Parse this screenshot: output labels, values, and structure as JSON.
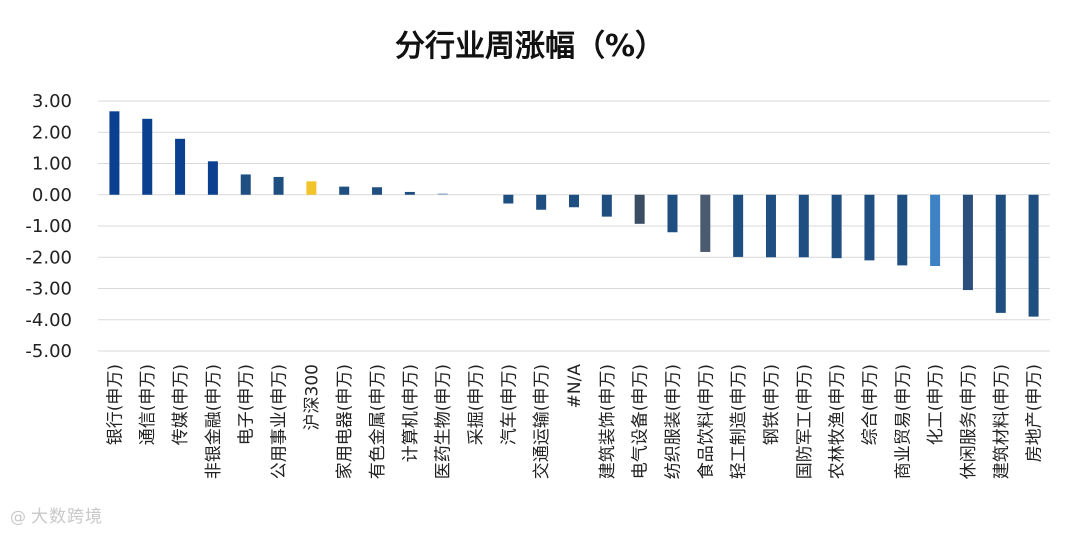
{
  "chart_data": {
    "type": "bar",
    "title": "分行业周涨幅（%）",
    "xlabel": "",
    "ylabel": "",
    "ylim": [
      -5,
      3
    ],
    "yticks": [
      "3.00",
      "2.00",
      "1.00",
      "0.00",
      "-1.00",
      "-2.00",
      "-3.00",
      "-4.00",
      "-5.00"
    ],
    "ytick_values": [
      3,
      2,
      1,
      0,
      -1,
      -2,
      -3,
      -4,
      -5
    ],
    "grid": true,
    "categories": [
      "银行(申万)",
      "通信(申万)",
      "传媒(申万)",
      "非银金融(申万)",
      "电子(申万)",
      "公用事业(申万)",
      "沪深300",
      "家用电器(申万)",
      "有色金属(申万)",
      "计算机(申万)",
      "医药生物(申万)",
      "采掘(申万)",
      "汽车(申万)",
      "交通运输(申万)",
      "#N/A",
      "建筑装饰(申万)",
      "电气设备(申万)",
      "纺织服装(申万)",
      "食品饮料(申万)",
      "轻工制造(申万)",
      "钢铁(申万)",
      "国防军工(申万)",
      "农林牧渔(申万)",
      "综合(申万)",
      "商业贸易(申万)",
      "化工(申万)",
      "休闲服务(申万)",
      "建筑材料(申万)",
      "房地产(申万)"
    ],
    "values": [
      2.67,
      2.43,
      1.79,
      1.07,
      0.65,
      0.57,
      0.43,
      0.26,
      0.24,
      0.09,
      0.04,
      0.0,
      -0.28,
      -0.48,
      -0.4,
      -0.7,
      -0.93,
      -1.2,
      -1.83,
      -1.99,
      -2.0,
      -2.0,
      -2.03,
      -2.1,
      -2.26,
      -2.28,
      -3.05,
      -3.78,
      -3.9
    ],
    "colors": [
      "#0b3f8f",
      "#0b3f8f",
      "#0b3f8f",
      "#0b3f8f",
      "#1f4e80",
      "#1f4e80",
      "#f2c42c",
      "#1f4e80",
      "#1f4e80",
      "#1f4e80",
      "#8ea9c7",
      "#1f4e80",
      "#1f4e80",
      "#1f4e80",
      "#1f4e80",
      "#1f4e80",
      "#3a4d63",
      "#1f4e80",
      "#4a5b70",
      "#1f4e80",
      "#1f4e80",
      "#1f4e80",
      "#1f4e80",
      "#1f4e80",
      "#1f4e80",
      "#3e82c4",
      "#2b4f7c",
      "#1f4e80",
      "#1f4e80"
    ]
  },
  "watermark": {
    "text": "大数跨境",
    "icon": "logo-swirl-icon"
  }
}
